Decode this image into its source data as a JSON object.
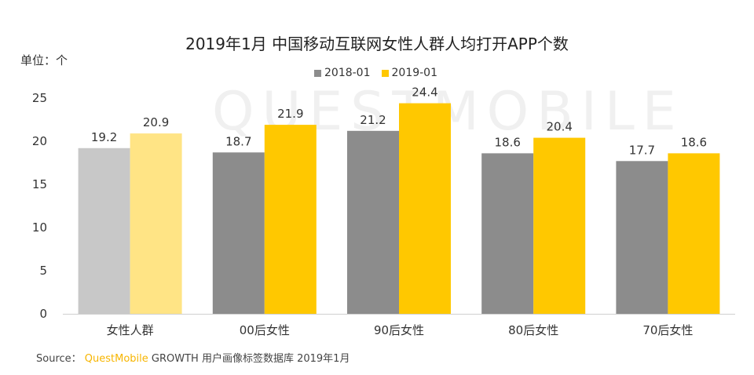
{
  "chart_data": {
    "type": "bar",
    "title": "2019年1月 中国移动互联网女性人群人均打开APP个数",
    "unit_label": "单位：个",
    "categories": [
      "女性人群",
      "00后女性",
      "90后女性",
      "80后女性",
      "70后女性"
    ],
    "series": [
      {
        "name": "2018-01",
        "values": [
          19.2,
          18.7,
          21.2,
          18.6,
          17.7
        ],
        "color": "#8c8c8c",
        "highlight_color": "#c8c8c8"
      },
      {
        "name": "2019-01",
        "values": [
          20.9,
          21.9,
          24.4,
          20.4,
          18.6
        ],
        "color": "#ffc800",
        "highlight_color": "#ffe485"
      }
    ],
    "highlighted_category_index": 0,
    "ylim": [
      0,
      25
    ],
    "yticks": [
      0,
      5,
      10,
      15,
      20,
      25
    ],
    "xlabel": "",
    "ylabel": "",
    "grid": false,
    "legend_position": "top-center"
  },
  "source": {
    "prefix": "Source：",
    "brand": "QuestMobile",
    "text": "GROWTH 用户画像标签数据库 2019年1月"
  },
  "watermark": "QUESTMOBILE"
}
